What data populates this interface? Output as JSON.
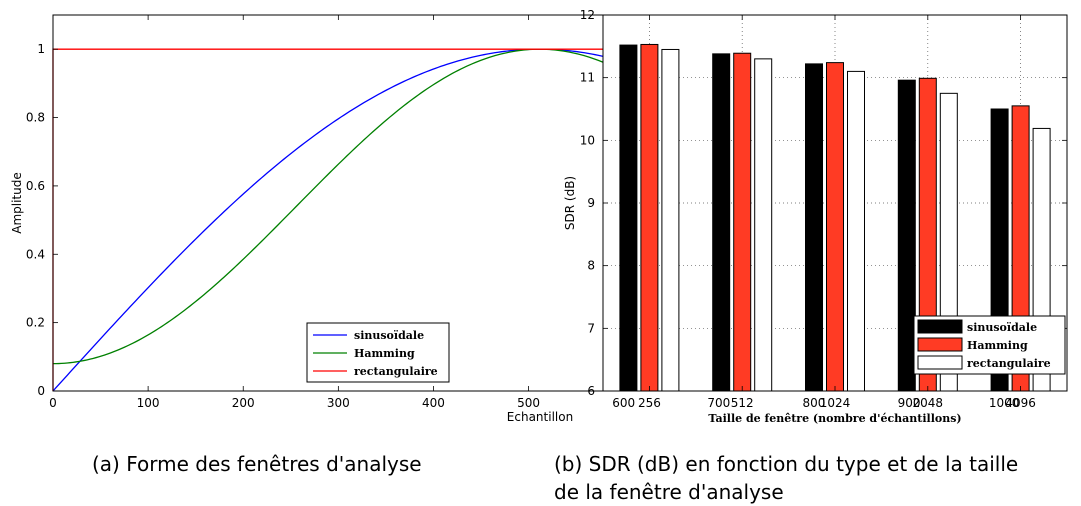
{
  "captions": {
    "a": "(a) Forme des fenêtres d'analyse",
    "b_line1": "(b) SDR (dB) en fonction du type et de la taille",
    "b_line2": "de la fenêtre d'analyse"
  },
  "chart_data": [
    {
      "type": "line",
      "xlabel": "Echantillon",
      "ylabel": "Amplitude",
      "xlim": [
        0,
        1024
      ],
      "ylim": [
        0,
        1.1
      ],
      "xticks": [
        0,
        100,
        200,
        300,
        400,
        500,
        600,
        700,
        800,
        900,
        1000
      ],
      "yticks": [
        0,
        0.2,
        0.4,
        0.6,
        0.8,
        1
      ],
      "grid": false,
      "legend_position": "bottom-right",
      "series": [
        {
          "name": "sinusoïdale",
          "color": "#0000ff",
          "formula": "sin(pi*n/(N-1))",
          "N": 1024
        },
        {
          "name": "Hamming",
          "color": "#008000",
          "formula": "0.54-0.46*cos(2*pi*n/(N-1))",
          "N": 1024
        },
        {
          "name": "rectangulaire",
          "color": "#ff0000",
          "formula": "1",
          "N": 1024
        }
      ]
    },
    {
      "type": "bar",
      "xlabel": "Taille de fenêtre (nombre d'échantillons)",
      "ylabel": "SDR (dB)",
      "categories": [
        "256",
        "512",
        "1024",
        "2048",
        "4096"
      ],
      "ylim": [
        6,
        12
      ],
      "yticks": [
        6,
        7,
        8,
        9,
        10,
        11,
        12
      ],
      "grid": true,
      "legend_position": "bottom-right",
      "series": [
        {
          "name": "sinusoïdale",
          "color": "#000000",
          "values": [
            11.52,
            11.38,
            11.22,
            10.96,
            10.5
          ]
        },
        {
          "name": "Hamming",
          "color": "#ff3b24",
          "values": [
            11.53,
            11.39,
            11.24,
            10.99,
            10.55
          ]
        },
        {
          "name": "rectangulaire",
          "color": "#ffffff",
          "values": [
            11.45,
            11.3,
            11.1,
            10.75,
            10.19
          ]
        }
      ]
    }
  ]
}
